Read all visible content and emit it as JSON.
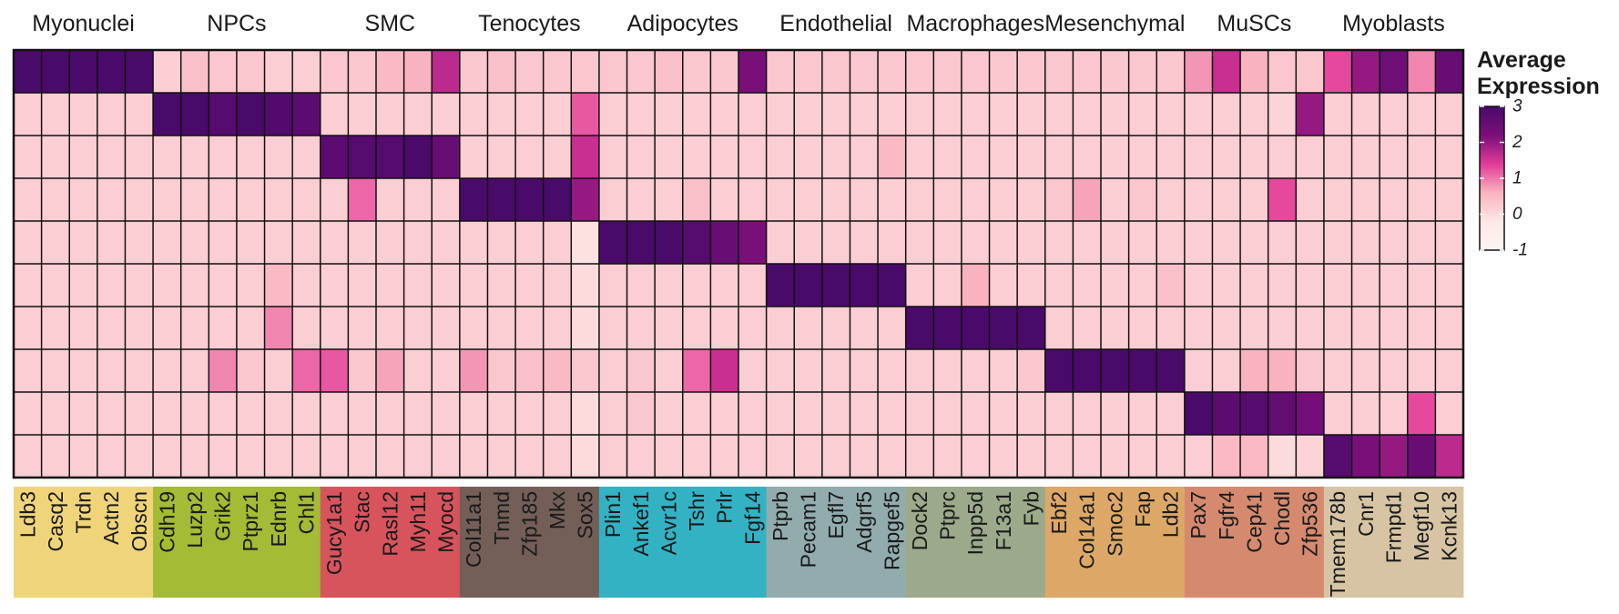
{
  "chart_data": {
    "type": "heatmap",
    "legend": {
      "title_line1": "Average",
      "title_line2": "Expression",
      "ticks": [
        3,
        2,
        1,
        0,
        -1
      ],
      "tick_labels": [
        "3",
        "2",
        "1",
        "0",
        "-1"
      ],
      "range": [
        -1,
        3
      ],
      "colors": [
        "#fff4f2",
        "#fde8e6",
        "#f9b3bf",
        "#e23a98",
        "#7a0f7a",
        "#4a0a6a"
      ],
      "placement": "right"
    },
    "groups": [
      {
        "name": "Myonuclei",
        "color": "#f0d47a",
        "genes": [
          "Ldb3",
          "Casq2",
          "Trdn",
          "Actn2",
          "Obscn"
        ]
      },
      {
        "name": "NPCs",
        "color": "#a3bb35",
        "genes": [
          "Cdh19",
          "Luzp2",
          "Grik2",
          "Ptprz1",
          "Ednrb",
          "Chl1"
        ]
      },
      {
        "name": "SMC",
        "color": "#d7545d",
        "genes": [
          "Gucy1a1",
          "Stac",
          "Rasl12",
          "Myh11",
          "Myocd"
        ]
      },
      {
        "name": "Tenocytes",
        "color": "#735f58",
        "genes": [
          "Col11a1",
          "Tnmd",
          "Zfp185",
          "Mkx",
          "Sox5"
        ]
      },
      {
        "name": "Adipocytes",
        "color": "#33b2c4",
        "genes": [
          "Plin1",
          "Ankef1",
          "Acvr1c",
          "Tshr",
          "Prlr",
          "Fgf14"
        ]
      },
      {
        "name": "Endothelial",
        "color": "#92acae",
        "genes": [
          "Ptprb",
          "Pecam1",
          "Egfl7",
          "Adgrf5",
          "Rapgef5"
        ]
      },
      {
        "name": "Macrophages",
        "color": "#9ca98a",
        "genes": [
          "Dock2",
          "Ptprc",
          "Inpp5d",
          "F13a1",
          "Fyb"
        ]
      },
      {
        "name": "Mesenchymal",
        "color": "#dda867",
        "genes": [
          "Ebf2",
          "Col14a1",
          "Smoc2",
          "Fap",
          "Ldb2"
        ]
      },
      {
        "name": "MuSCs",
        "color": "#d58a6f",
        "genes": [
          "Pax7",
          "Fgfr4",
          "Cep41",
          "Chodl",
          "Zfp536"
        ]
      },
      {
        "name": "Myoblasts",
        "color": "#d6c4a4",
        "genes": [
          "Tmem178b",
          "Cnr1",
          "Frmpd1",
          "Megf10",
          "Kcnk13"
        ]
      }
    ],
    "values": [
      [
        3.0,
        3.0,
        3.0,
        3.0,
        3.0,
        0.2,
        0.4,
        0.3,
        0.3,
        0.2,
        0.2,
        0.3,
        0.3,
        0.5,
        0.6,
        1.7,
        0.3,
        0.4,
        0.3,
        0.3,
        0.3,
        0.3,
        0.3,
        0.4,
        0.3,
        0.3,
        2.2,
        0.3,
        0.3,
        0.3,
        0.3,
        0.3,
        0.3,
        0.3,
        0.3,
        0.3,
        0.3,
        0.3,
        0.3,
        0.3,
        0.3,
        0.3,
        0.8,
        1.6,
        0.6,
        0.3,
        0.3,
        1.3,
        2.0,
        2.4,
        0.9,
        2.5
      ],
      [
        0.2,
        0.2,
        0.2,
        0.2,
        0.2,
        3.0,
        3.0,
        2.8,
        3.0,
        2.9,
        2.7,
        0.2,
        0.2,
        0.2,
        0.2,
        0.2,
        0.2,
        0.2,
        0.2,
        0.2,
        1.2,
        0.2,
        0.2,
        0.2,
        0.2,
        0.2,
        0.2,
        0.2,
        0.2,
        0.2,
        0.2,
        0.2,
        0.2,
        0.2,
        0.2,
        0.2,
        0.2,
        0.2,
        0.2,
        0.2,
        0.2,
        0.2,
        0.2,
        0.2,
        0.2,
        0.1,
        2.0,
        0.2,
        0.2,
        0.2,
        0.2,
        0.2
      ],
      [
        0.2,
        0.2,
        0.2,
        0.2,
        0.2,
        0.2,
        0.2,
        0.2,
        0.2,
        0.2,
        0.2,
        2.7,
        2.8,
        2.8,
        3.0,
        2.5,
        0.2,
        0.2,
        0.2,
        0.2,
        1.6,
        0.2,
        0.2,
        0.2,
        0.2,
        0.2,
        0.2,
        0.2,
        0.2,
        0.2,
        0.2,
        0.5,
        0.2,
        0.2,
        0.2,
        0.2,
        0.2,
        0.2,
        0.2,
        0.2,
        0.2,
        0.2,
        0.2,
        0.2,
        0.2,
        0.2,
        0.2,
        0.2,
        0.2,
        0.2,
        0.2,
        0.2
      ],
      [
        0.2,
        0.2,
        0.2,
        0.2,
        0.2,
        0.2,
        0.2,
        0.2,
        0.2,
        0.2,
        0.2,
        0.2,
        1.1,
        0.2,
        0.2,
        0.2,
        3.0,
        3.0,
        3.0,
        3.0,
        2.0,
        0.2,
        0.2,
        0.2,
        0.4,
        0.2,
        0.2,
        0.2,
        0.2,
        0.2,
        0.2,
        0.2,
        0.2,
        0.2,
        0.2,
        0.2,
        0.2,
        0.3,
        0.7,
        0.2,
        0.3,
        0.2,
        0.2,
        0.2,
        0.2,
        1.3,
        0.2,
        0.2,
        0.2,
        0.2,
        0.2,
        0.2
      ],
      [
        0.2,
        0.2,
        0.2,
        0.2,
        0.2,
        0.2,
        0.2,
        0.2,
        0.2,
        0.2,
        0.2,
        0.2,
        0.2,
        0.2,
        0.2,
        0.2,
        0.2,
        0.2,
        0.2,
        0.2,
        -0.1,
        3.0,
        3.0,
        3.0,
        2.8,
        2.5,
        2.2,
        0.2,
        0.2,
        0.2,
        0.2,
        0.2,
        0.2,
        0.2,
        0.2,
        0.2,
        0.2,
        0.2,
        0.2,
        0.2,
        0.2,
        0.2,
        0.2,
        0.2,
        0.2,
        0.2,
        0.2,
        0.2,
        0.2,
        0.2,
        0.2,
        0.2
      ],
      [
        0.2,
        0.2,
        0.2,
        0.2,
        0.2,
        0.2,
        0.2,
        0.2,
        0.2,
        0.5,
        0.2,
        0.2,
        0.2,
        0.2,
        0.2,
        0.2,
        0.2,
        0.2,
        0.2,
        0.2,
        0.0,
        0.2,
        0.2,
        0.2,
        0.2,
        0.2,
        0.2,
        3.0,
        3.0,
        3.0,
        3.0,
        3.0,
        0.2,
        0.2,
        0.6,
        0.2,
        0.2,
        0.2,
        0.2,
        0.2,
        0.2,
        0.4,
        0.2,
        0.2,
        0.2,
        0.2,
        0.2,
        0.2,
        0.2,
        0.2,
        0.2,
        0.2
      ],
      [
        0.2,
        0.2,
        0.2,
        0.2,
        0.2,
        0.2,
        0.2,
        0.2,
        0.2,
        0.9,
        0.2,
        0.2,
        0.2,
        0.2,
        0.2,
        0.2,
        0.2,
        0.2,
        0.2,
        0.2,
        0.0,
        0.2,
        0.2,
        0.2,
        0.2,
        0.2,
        0.2,
        0.2,
        0.2,
        0.2,
        0.2,
        0.2,
        3.0,
        3.0,
        3.0,
        3.0,
        3.0,
        0.2,
        0.2,
        0.2,
        0.2,
        0.2,
        0.2,
        0.2,
        0.2,
        0.2,
        0.2,
        0.2,
        0.2,
        0.2,
        0.2,
        0.2
      ],
      [
        0.2,
        0.2,
        0.2,
        0.2,
        0.2,
        0.2,
        0.2,
        0.9,
        0.3,
        0.2,
        1.1,
        1.2,
        0.3,
        0.7,
        0.2,
        0.2,
        0.8,
        0.3,
        0.4,
        0.5,
        0.3,
        0.2,
        0.3,
        0.2,
        1.1,
        1.6,
        0.2,
        0.2,
        0.2,
        0.2,
        0.2,
        0.2,
        0.2,
        0.2,
        0.2,
        0.2,
        0.3,
        3.0,
        3.0,
        3.0,
        3.0,
        3.0,
        0.2,
        0.2,
        0.6,
        0.6,
        0.3,
        0.2,
        0.2,
        0.2,
        0.2,
        0.2
      ],
      [
        0.2,
        0.2,
        0.2,
        0.2,
        0.2,
        0.2,
        0.2,
        0.2,
        0.2,
        0.2,
        0.2,
        0.2,
        0.2,
        0.2,
        0.2,
        0.2,
        0.2,
        0.2,
        0.2,
        0.2,
        0.0,
        0.2,
        0.3,
        0.2,
        0.2,
        0.2,
        0.2,
        0.2,
        0.2,
        0.2,
        0.2,
        0.2,
        0.2,
        0.2,
        0.2,
        0.2,
        0.2,
        0.2,
        0.2,
        0.2,
        0.2,
        0.2,
        3.0,
        2.7,
        2.8,
        2.6,
        2.3,
        0.2,
        0.2,
        0.2,
        1.3,
        0.2
      ],
      [
        0.2,
        0.2,
        0.2,
        0.2,
        0.2,
        0.2,
        0.2,
        0.2,
        0.2,
        0.2,
        0.2,
        0.2,
        0.2,
        0.2,
        0.2,
        0.2,
        0.2,
        0.2,
        0.2,
        0.2,
        0.0,
        0.2,
        0.2,
        0.2,
        0.2,
        0.2,
        0.2,
        0.2,
        0.2,
        0.2,
        0.2,
        0.2,
        0.2,
        0.2,
        0.2,
        0.2,
        0.2,
        0.2,
        0.2,
        0.2,
        0.2,
        0.2,
        0.2,
        0.5,
        0.5,
        0.0,
        0.1,
        2.8,
        2.2,
        2.0,
        2.5,
        1.7
      ]
    ]
  }
}
